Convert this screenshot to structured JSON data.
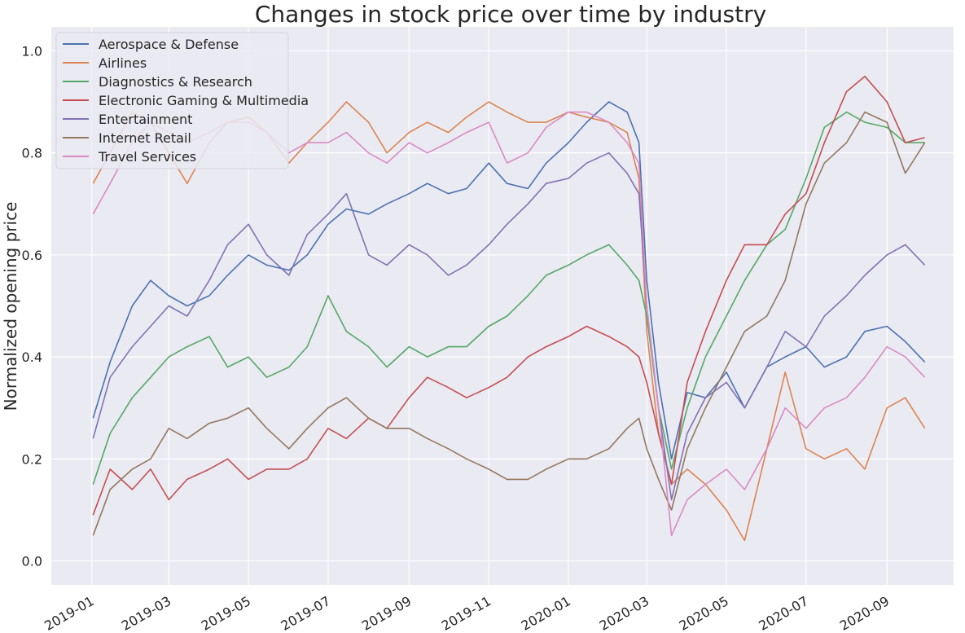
{
  "chart_data": {
    "type": "line",
    "title": "Changes in stock price over time by industry",
    "xlabel": "",
    "ylabel": "Normalized opening price",
    "xlim": [
      "2018-12-01",
      "2020-10-22"
    ],
    "ylim": [
      -0.047,
      1.047
    ],
    "yticks": [
      0.0,
      0.2,
      0.4,
      0.6,
      0.8,
      1.0
    ],
    "ytick_labels": [
      "0.0",
      "0.2",
      "0.4",
      "0.6",
      "0.8",
      "1.0"
    ],
    "xticks": [
      "2019-01-01",
      "2019-03-01",
      "2019-05-01",
      "2019-07-01",
      "2019-09-01",
      "2019-11-01",
      "2020-01-01",
      "2020-03-01",
      "2020-05-01",
      "2020-07-01",
      "2020-09-01"
    ],
    "xtick_labels": [
      "2019-01",
      "2019-03",
      "2019-05",
      "2019-07",
      "2019-09",
      "2019-11",
      "2020-01",
      "2020-03",
      "2020-05",
      "2020-07",
      "2020-09"
    ],
    "grid": true,
    "background": "#eaeaf2",
    "legend_position": "top-left",
    "series": [
      {
        "name": "Aerospace & Defense",
        "color": "#4c72b0",
        "x": [
          "2019-01-02",
          "2019-01-15",
          "2019-02-01",
          "2019-02-15",
          "2019-03-01",
          "2019-03-15",
          "2019-04-01",
          "2019-04-15",
          "2019-05-01",
          "2019-05-15",
          "2019-06-01",
          "2019-06-15",
          "2019-07-01",
          "2019-07-15",
          "2019-08-01",
          "2019-08-15",
          "2019-09-01",
          "2019-09-15",
          "2019-10-01",
          "2019-10-15",
          "2019-11-01",
          "2019-11-15",
          "2019-12-01",
          "2019-12-15",
          "2020-01-01",
          "2020-01-15",
          "2020-02-01",
          "2020-02-15",
          "2020-02-24",
          "2020-03-01",
          "2020-03-10",
          "2020-03-20",
          "2020-04-01",
          "2020-04-15",
          "2020-05-01",
          "2020-05-15",
          "2020-06-01",
          "2020-06-15",
          "2020-07-01",
          "2020-07-15",
          "2020-08-01",
          "2020-08-15",
          "2020-09-01",
          "2020-09-15",
          "2020-09-30"
        ],
        "y": [
          0.28,
          0.39,
          0.5,
          0.55,
          0.52,
          0.5,
          0.52,
          0.56,
          0.6,
          0.58,
          0.57,
          0.6,
          0.66,
          0.69,
          0.68,
          0.7,
          0.72,
          0.74,
          0.72,
          0.73,
          0.78,
          0.74,
          0.73,
          0.78,
          0.82,
          0.86,
          0.9,
          0.88,
          0.82,
          0.55,
          0.35,
          0.2,
          0.33,
          0.32,
          0.37,
          0.3,
          0.38,
          0.4,
          0.42,
          0.38,
          0.4,
          0.45,
          0.46,
          0.43,
          0.39
        ]
      },
      {
        "name": "Airlines",
        "color": "#dd8452",
        "x": [
          "2019-01-02",
          "2019-01-15",
          "2019-02-01",
          "2019-02-15",
          "2019-03-01",
          "2019-03-15",
          "2019-04-01",
          "2019-04-15",
          "2019-05-01",
          "2019-05-15",
          "2019-06-01",
          "2019-06-15",
          "2019-07-01",
          "2019-07-15",
          "2019-08-01",
          "2019-08-15",
          "2019-09-01",
          "2019-09-15",
          "2019-10-01",
          "2019-10-15",
          "2019-11-01",
          "2019-11-15",
          "2019-12-01",
          "2019-12-15",
          "2020-01-01",
          "2020-01-15",
          "2020-02-01",
          "2020-02-15",
          "2020-02-24",
          "2020-03-01",
          "2020-03-10",
          "2020-03-20",
          "2020-04-01",
          "2020-04-15",
          "2020-05-01",
          "2020-05-15",
          "2020-06-01",
          "2020-06-15",
          "2020-07-01",
          "2020-07-15",
          "2020-08-01",
          "2020-08-15",
          "2020-09-01",
          "2020-09-15",
          "2020-09-30"
        ],
        "y": [
          0.74,
          0.8,
          0.88,
          0.86,
          0.8,
          0.74,
          0.82,
          0.86,
          0.87,
          0.84,
          0.78,
          0.82,
          0.86,
          0.9,
          0.86,
          0.8,
          0.84,
          0.86,
          0.84,
          0.87,
          0.9,
          0.88,
          0.86,
          0.86,
          0.88,
          0.87,
          0.86,
          0.84,
          0.75,
          0.45,
          0.25,
          0.15,
          0.18,
          0.15,
          0.1,
          0.04,
          0.22,
          0.37,
          0.22,
          0.2,
          0.22,
          0.18,
          0.3,
          0.32,
          0.26
        ]
      },
      {
        "name": "Diagnostics & Research",
        "color": "#55a868",
        "x": [
          "2019-01-02",
          "2019-01-15",
          "2019-02-01",
          "2019-02-15",
          "2019-03-01",
          "2019-03-15",
          "2019-04-01",
          "2019-04-15",
          "2019-05-01",
          "2019-05-15",
          "2019-06-01",
          "2019-06-15",
          "2019-07-01",
          "2019-07-15",
          "2019-08-01",
          "2019-08-15",
          "2019-09-01",
          "2019-09-15",
          "2019-10-01",
          "2019-10-15",
          "2019-11-01",
          "2019-11-15",
          "2019-12-01",
          "2019-12-15",
          "2020-01-01",
          "2020-01-15",
          "2020-02-01",
          "2020-02-15",
          "2020-02-24",
          "2020-03-01",
          "2020-03-10",
          "2020-03-20",
          "2020-04-01",
          "2020-04-15",
          "2020-05-01",
          "2020-05-15",
          "2020-06-01",
          "2020-06-15",
          "2020-07-01",
          "2020-07-15",
          "2020-08-01",
          "2020-08-15",
          "2020-09-01",
          "2020-09-15",
          "2020-09-30"
        ],
        "y": [
          0.15,
          0.25,
          0.32,
          0.36,
          0.4,
          0.42,
          0.44,
          0.38,
          0.4,
          0.36,
          0.38,
          0.42,
          0.52,
          0.45,
          0.42,
          0.38,
          0.42,
          0.4,
          0.42,
          0.42,
          0.46,
          0.48,
          0.52,
          0.56,
          0.58,
          0.6,
          0.62,
          0.58,
          0.55,
          0.48,
          0.3,
          0.18,
          0.3,
          0.4,
          0.48,
          0.55,
          0.62,
          0.65,
          0.75,
          0.85,
          0.88,
          0.86,
          0.85,
          0.82,
          0.82
        ]
      },
      {
        "name": "Electronic Gaming & Multimedia",
        "color": "#c44e52",
        "x": [
          "2019-01-02",
          "2019-01-15",
          "2019-02-01",
          "2019-02-15",
          "2019-03-01",
          "2019-03-15",
          "2019-04-01",
          "2019-04-15",
          "2019-05-01",
          "2019-05-15",
          "2019-06-01",
          "2019-06-15",
          "2019-07-01",
          "2019-07-15",
          "2019-08-01",
          "2019-08-15",
          "2019-09-01",
          "2019-09-15",
          "2019-10-01",
          "2019-10-15",
          "2019-11-01",
          "2019-11-15",
          "2019-12-01",
          "2019-12-15",
          "2020-01-01",
          "2020-01-15",
          "2020-02-01",
          "2020-02-15",
          "2020-02-24",
          "2020-03-01",
          "2020-03-10",
          "2020-03-20",
          "2020-04-01",
          "2020-04-15",
          "2020-05-01",
          "2020-05-15",
          "2020-06-01",
          "2020-06-15",
          "2020-07-01",
          "2020-07-15",
          "2020-08-01",
          "2020-08-15",
          "2020-09-01",
          "2020-09-15",
          "2020-09-30"
        ],
        "y": [
          0.09,
          0.18,
          0.14,
          0.18,
          0.12,
          0.16,
          0.18,
          0.2,
          0.16,
          0.18,
          0.18,
          0.2,
          0.26,
          0.24,
          0.28,
          0.26,
          0.32,
          0.36,
          0.34,
          0.32,
          0.34,
          0.36,
          0.4,
          0.42,
          0.44,
          0.46,
          0.44,
          0.42,
          0.4,
          0.35,
          0.25,
          0.15,
          0.35,
          0.45,
          0.55,
          0.62,
          0.62,
          0.68,
          0.72,
          0.82,
          0.92,
          0.95,
          0.9,
          0.82,
          0.83
        ]
      },
      {
        "name": "Entertainment",
        "color": "#8172b3",
        "x": [
          "2019-01-02",
          "2019-01-15",
          "2019-02-01",
          "2019-02-15",
          "2019-03-01",
          "2019-03-15",
          "2019-04-01",
          "2019-04-15",
          "2019-05-01",
          "2019-05-15",
          "2019-06-01",
          "2019-06-15",
          "2019-07-01",
          "2019-07-15",
          "2019-08-01",
          "2019-08-15",
          "2019-09-01",
          "2019-09-15",
          "2019-10-01",
          "2019-10-15",
          "2019-11-01",
          "2019-11-15",
          "2019-12-01",
          "2019-12-15",
          "2020-01-01",
          "2020-01-15",
          "2020-02-01",
          "2020-02-15",
          "2020-02-24",
          "2020-03-01",
          "2020-03-10",
          "2020-03-20",
          "2020-04-01",
          "2020-04-15",
          "2020-05-01",
          "2020-05-15",
          "2020-06-01",
          "2020-06-15",
          "2020-07-01",
          "2020-07-15",
          "2020-08-01",
          "2020-08-15",
          "2020-09-01",
          "2020-09-15",
          "2020-09-30"
        ],
        "y": [
          0.24,
          0.36,
          0.42,
          0.46,
          0.5,
          0.48,
          0.55,
          0.62,
          0.66,
          0.6,
          0.56,
          0.64,
          0.68,
          0.72,
          0.6,
          0.58,
          0.62,
          0.6,
          0.56,
          0.58,
          0.62,
          0.66,
          0.7,
          0.74,
          0.75,
          0.78,
          0.8,
          0.76,
          0.72,
          0.5,
          0.3,
          0.12,
          0.25,
          0.32,
          0.35,
          0.3,
          0.38,
          0.45,
          0.42,
          0.48,
          0.52,
          0.56,
          0.6,
          0.62,
          0.58
        ]
      },
      {
        "name": "Internet Retail",
        "color": "#937860",
        "x": [
          "2019-01-02",
          "2019-01-15",
          "2019-02-01",
          "2019-02-15",
          "2019-03-01",
          "2019-03-15",
          "2019-04-01",
          "2019-04-15",
          "2019-05-01",
          "2019-05-15",
          "2019-06-01",
          "2019-06-15",
          "2019-07-01",
          "2019-07-15",
          "2019-08-01",
          "2019-08-15",
          "2019-09-01",
          "2019-09-15",
          "2019-10-01",
          "2019-10-15",
          "2019-11-01",
          "2019-11-15",
          "2019-12-01",
          "2019-12-15",
          "2020-01-01",
          "2020-01-15",
          "2020-02-01",
          "2020-02-15",
          "2020-02-24",
          "2020-03-01",
          "2020-03-10",
          "2020-03-20",
          "2020-04-01",
          "2020-04-15",
          "2020-05-01",
          "2020-05-15",
          "2020-06-01",
          "2020-06-15",
          "2020-07-01",
          "2020-07-15",
          "2020-08-01",
          "2020-08-15",
          "2020-09-01",
          "2020-09-15",
          "2020-09-30"
        ],
        "y": [
          0.05,
          0.14,
          0.18,
          0.2,
          0.26,
          0.24,
          0.27,
          0.28,
          0.3,
          0.26,
          0.22,
          0.26,
          0.3,
          0.32,
          0.28,
          0.26,
          0.26,
          0.24,
          0.22,
          0.2,
          0.18,
          0.16,
          0.16,
          0.18,
          0.2,
          0.2,
          0.22,
          0.26,
          0.28,
          0.22,
          0.16,
          0.1,
          0.22,
          0.3,
          0.38,
          0.45,
          0.48,
          0.55,
          0.7,
          0.78,
          0.82,
          0.88,
          0.86,
          0.76,
          0.82
        ]
      },
      {
        "name": "Travel Services",
        "color": "#da8bc3",
        "x": [
          "2019-01-02",
          "2019-01-15",
          "2019-02-01",
          "2019-02-15",
          "2019-03-01",
          "2019-03-15",
          "2019-04-01",
          "2019-04-15",
          "2019-05-01",
          "2019-05-15",
          "2019-06-01",
          "2019-06-15",
          "2019-07-01",
          "2019-07-15",
          "2019-08-01",
          "2019-08-15",
          "2019-09-01",
          "2019-09-15",
          "2019-10-01",
          "2019-10-15",
          "2019-11-01",
          "2019-11-15",
          "2019-12-01",
          "2019-12-15",
          "2020-01-01",
          "2020-01-15",
          "2020-02-01",
          "2020-02-15",
          "2020-02-24",
          "2020-03-01",
          "2020-03-10",
          "2020-03-20",
          "2020-04-01",
          "2020-04-15",
          "2020-05-01",
          "2020-05-15",
          "2020-06-01",
          "2020-06-15",
          "2020-07-01",
          "2020-07-15",
          "2020-08-01",
          "2020-08-15",
          "2020-09-01",
          "2020-09-15",
          "2020-09-30"
        ],
        "y": [
          0.68,
          0.74,
          0.82,
          0.86,
          0.84,
          0.82,
          0.84,
          0.86,
          0.86,
          0.84,
          0.8,
          0.82,
          0.82,
          0.84,
          0.8,
          0.78,
          0.82,
          0.8,
          0.82,
          0.84,
          0.86,
          0.78,
          0.8,
          0.85,
          0.88,
          0.88,
          0.86,
          0.82,
          0.78,
          0.5,
          0.3,
          0.05,
          0.12,
          0.15,
          0.18,
          0.14,
          0.22,
          0.3,
          0.26,
          0.3,
          0.32,
          0.36,
          0.42,
          0.4,
          0.36
        ]
      }
    ]
  }
}
